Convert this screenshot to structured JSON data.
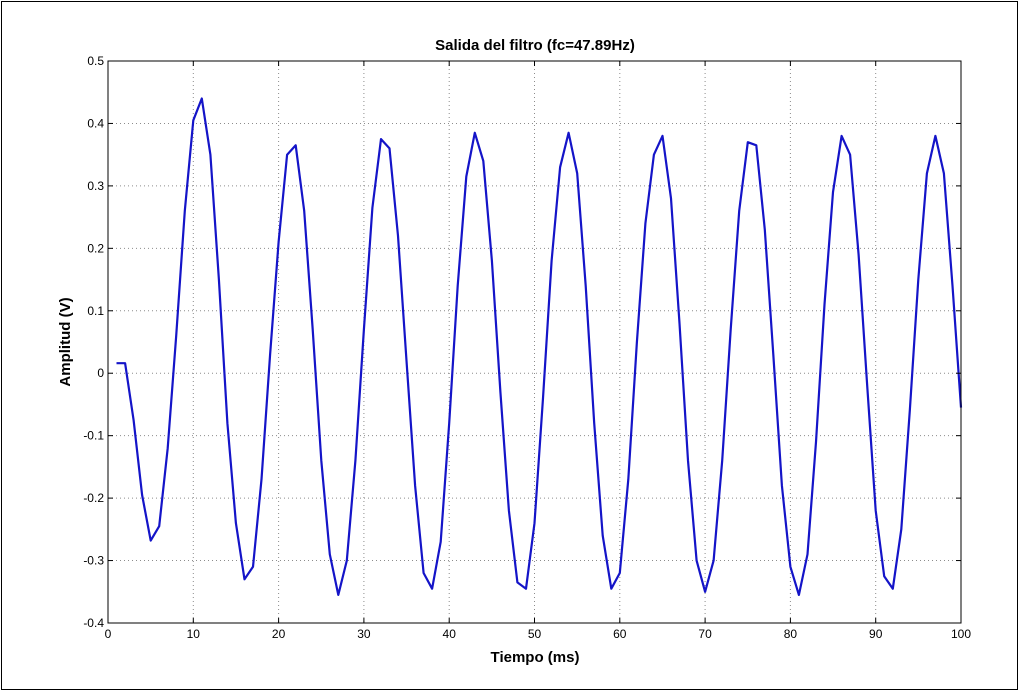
{
  "chart_data": {
    "type": "line",
    "title": "Salida del filtro (fc=47.89Hz)",
    "xlabel": "Tiempo (ms)",
    "ylabel": "Amplitud (V)",
    "xlim": [
      0,
      100
    ],
    "ylim": [
      -0.4,
      0.5
    ],
    "xticks": [
      0,
      10,
      20,
      30,
      40,
      50,
      60,
      70,
      80,
      90,
      100
    ],
    "yticks": [
      -0.4,
      -0.3,
      -0.2,
      -0.1,
      0,
      0.1,
      0.2,
      0.3,
      0.4,
      0.5
    ],
    "xtick_labels": [
      "0",
      "10",
      "20",
      "30",
      "40",
      "50",
      "60",
      "70",
      "80",
      "90",
      "100"
    ],
    "ytick_labels": [
      "-0.4",
      "-0.3",
      "-0.2",
      "-0.1",
      "0",
      "0.1",
      "0.2",
      "0.3",
      "0.4",
      "0.5"
    ],
    "grid": true,
    "line_color": "#1414c8",
    "series": [
      {
        "x": [
          1,
          2,
          3,
          4,
          5,
          6,
          7,
          8,
          9,
          10,
          11,
          12,
          13,
          14,
          15,
          16,
          17,
          18,
          19,
          20,
          21,
          22,
          23,
          24,
          25,
          26,
          27,
          28,
          29,
          30,
          31,
          32,
          33,
          34,
          35,
          36,
          37,
          38,
          39,
          40,
          41,
          42,
          43,
          44,
          45,
          46,
          47,
          48,
          49,
          50,
          51,
          52,
          53,
          54,
          55,
          56,
          57,
          58,
          59,
          60,
          61,
          62,
          63,
          64,
          65,
          66,
          67,
          68,
          69,
          70,
          71,
          72,
          73,
          74,
          75,
          76,
          77,
          78,
          79,
          80,
          81,
          82,
          83,
          84,
          85,
          86,
          87,
          88,
          89,
          90,
          91,
          92,
          93,
          94,
          95,
          96,
          97,
          98,
          99,
          100
        ],
        "y": [
          0.016,
          0.016,
          -0.075,
          -0.195,
          -0.268,
          -0.245,
          -0.12,
          0.06,
          0.26,
          0.405,
          0.44,
          0.35,
          0.15,
          -0.08,
          -0.24,
          -0.33,
          -0.31,
          -0.17,
          0.03,
          0.21,
          0.35,
          0.365,
          0.26,
          0.07,
          -0.14,
          -0.29,
          -0.355,
          -0.3,
          -0.14,
          0.07,
          0.265,
          0.375,
          0.36,
          0.22,
          0.02,
          -0.18,
          -0.32,
          -0.345,
          -0.27,
          -0.08,
          0.14,
          0.315,
          0.385,
          0.34,
          0.18,
          -0.03,
          -0.22,
          -0.335,
          -0.345,
          -0.24,
          -0.04,
          0.18,
          0.33,
          0.385,
          0.32,
          0.14,
          -0.08,
          -0.26,
          -0.345,
          -0.32,
          -0.17,
          0.05,
          0.24,
          0.35,
          0.38,
          0.28,
          0.08,
          -0.14,
          -0.3,
          -0.35,
          -0.3,
          -0.14,
          0.07,
          0.26,
          0.37,
          0.365,
          0.23,
          0.03,
          -0.18,
          -0.31,
          -0.355,
          -0.29,
          -0.11,
          0.11,
          0.29,
          0.38,
          0.35,
          0.19,
          -0.02,
          -0.22,
          -0.325,
          -0.345,
          -0.25,
          -0.06,
          0.15,
          0.32,
          0.38,
          0.32,
          0.14,
          -0.055
        ]
      }
    ]
  }
}
